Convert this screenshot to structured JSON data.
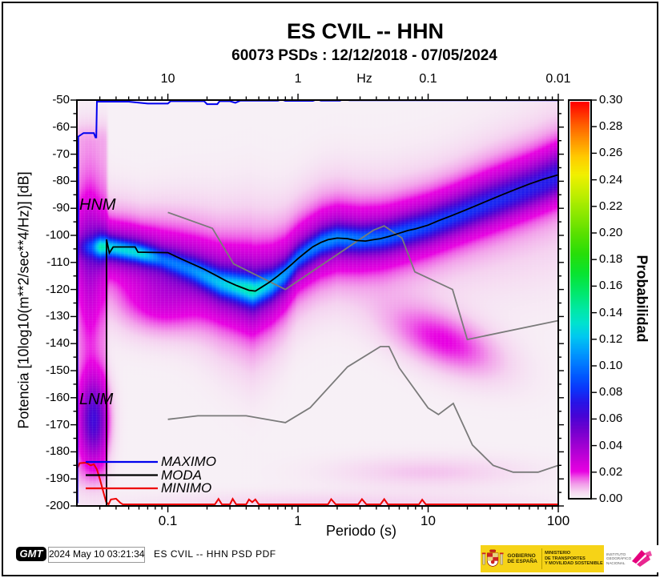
{
  "figure": {
    "title": "ES CVIL -- HHN",
    "subtitle": "60073 PSDs : 12/12/2018 - 07/05/2024"
  },
  "footer": {
    "gmt_logo": "GMT",
    "timestamp": "2024 May 10 03:21:34",
    "label": "ES CVIL -- HHN PSD PDF"
  },
  "logos": {
    "gobierno": [
      "GOBIERNO",
      "DE ESPAÑA"
    ],
    "ministerio": [
      "MINISTERIO",
      "DE TRANSPORTES",
      "Y MOVILIDAD SOSTENIBLE"
    ],
    "ign": [
      "INSTITUTO",
      "GEOGRÁFICO",
      "NACIONAL"
    ]
  },
  "chart_data": {
    "type": "heatmap",
    "title": "ES CVIL -- HHN",
    "subtitle": "60073 PSDs : 12/12/2018 - 07/05/2024",
    "xlabel": "Periodo (s)",
    "x_scale": "log",
    "xlim": [
      0.02,
      100
    ],
    "x_ticks": {
      "values": [
        0.1,
        1,
        10,
        100
      ],
      "labels": [
        "0.1",
        "1",
        "10",
        "100"
      ]
    },
    "top_axis": {
      "unit_label": "Hz",
      "ticks": [
        {
          "label": "10",
          "period": 0.1
        },
        {
          "label": "1",
          "period": 1
        },
        {
          "label": "0.1",
          "period": 10
        },
        {
          "label": "0.01",
          "period": 100
        }
      ]
    },
    "ylabel": "Potencia [10log10(m**2/sec**4/Hz)] [dB]",
    "ylim": [
      -200,
      -50
    ],
    "y_ticks": {
      "values": [
        -50,
        -60,
        -70,
        -80,
        -90,
        -100,
        -110,
        -120,
        -130,
        -140,
        -150,
        -160,
        -170,
        -180,
        -190,
        -200
      ],
      "labels": [
        "-50",
        "-60",
        "-70",
        "-80",
        "-90",
        "-100",
        "-110",
        "-120",
        "-130",
        "-140",
        "-150",
        "-160",
        "-170",
        "-180",
        "-190",
        "-200"
      ],
      "minor_step": 5
    },
    "colorbar": {
      "label": "Probabilidad",
      "min": 0.0,
      "max": 0.3,
      "tick_step": 0.02,
      "tick_labels": [
        "0.00",
        "0.02",
        "0.04",
        "0.06",
        "0.08",
        "0.10",
        "0.12",
        "0.14",
        "0.16",
        "0.18",
        "0.20",
        "0.22",
        "0.24",
        "0.26",
        "0.28",
        "0.30"
      ],
      "stops": [
        [
          0.0,
          247,
          240,
          246
        ],
        [
          0.005,
          245,
          210,
          240
        ],
        [
          0.01,
          242,
          160,
          234
        ],
        [
          0.015,
          238,
          90,
          230
        ],
        [
          0.02,
          232,
          0,
          226
        ],
        [
          0.03,
          196,
          0,
          216
        ],
        [
          0.04,
          158,
          0,
          210
        ],
        [
          0.052,
          110,
          0,
          206
        ],
        [
          0.062,
          70,
          4,
          214
        ],
        [
          0.072,
          40,
          20,
          230
        ],
        [
          0.082,
          12,
          52,
          250
        ],
        [
          0.092,
          0,
          88,
          255
        ],
        [
          0.102,
          0,
          124,
          255
        ],
        [
          0.112,
          0,
          162,
          252
        ],
        [
          0.122,
          0,
          200,
          240
        ],
        [
          0.132,
          0,
          226,
          208
        ],
        [
          0.142,
          0,
          232,
          168
        ],
        [
          0.155,
          0,
          232,
          110
        ],
        [
          0.17,
          8,
          228,
          48
        ],
        [
          0.185,
          40,
          222,
          8
        ],
        [
          0.2,
          90,
          224,
          0
        ],
        [
          0.215,
          140,
          232,
          0
        ],
        [
          0.23,
          192,
          238,
          0
        ],
        [
          0.245,
          242,
          240,
          0
        ],
        [
          0.258,
          255,
          204,
          0
        ],
        [
          0.27,
          255,
          152,
          0
        ],
        [
          0.283,
          255,
          92,
          0
        ],
        [
          0.3,
          255,
          0,
          0
        ]
      ]
    },
    "annotations": {
      "hnm": "HNM",
      "lnm": "LNM"
    },
    "legend": [
      {
        "label": "MAXIMO",
        "color": "#0000ee"
      },
      {
        "label": "MODA",
        "color": "#000000"
      },
      {
        "label": "MINIMO",
        "color": "#ee0000"
      }
    ],
    "series": {
      "maximo": [
        [
          0.0202,
          -199
        ],
        [
          0.0202,
          -130
        ],
        [
          0.0205,
          -90
        ],
        [
          0.0205,
          -63.5
        ],
        [
          0.0225,
          -62.2
        ],
        [
          0.027,
          -62.2
        ],
        [
          0.0278,
          -63.8
        ],
        [
          0.0282,
          -63.8
        ],
        [
          0.0285,
          -50.6
        ],
        [
          0.05,
          -50.6
        ],
        [
          0.07,
          -51.3
        ],
        [
          0.1,
          -51.3
        ],
        [
          0.105,
          -50.4
        ],
        [
          0.19,
          -50.4
        ],
        [
          0.2,
          -51.5
        ],
        [
          0.24,
          -51.5
        ],
        [
          0.25,
          -50.4
        ],
        [
          0.3,
          -50.4
        ],
        [
          0.33,
          -51.0
        ],
        [
          0.36,
          -50.2
        ],
        [
          0.7,
          -50.2
        ],
        [
          0.75,
          -49.8
        ],
        [
          0.8,
          -50.3
        ],
        [
          1.3,
          -50.3
        ],
        [
          1.4,
          -49.7
        ],
        [
          1.5,
          -50.2
        ],
        [
          2.1,
          -50.2
        ],
        [
          2.2,
          -49.8
        ],
        [
          2.5,
          -50.1
        ],
        [
          100,
          -50.1
        ]
      ],
      "moda": [
        [
          0.0338,
          -200
        ],
        [
          0.0338,
          -101.5
        ],
        [
          0.0355,
          -106.5
        ],
        [
          0.038,
          -104.3
        ],
        [
          0.056,
          -104.3
        ],
        [
          0.059,
          -106.2
        ],
        [
          0.1,
          -106.4
        ],
        [
          0.12,
          -108.2
        ],
        [
          0.15,
          -110.3
        ],
        [
          0.19,
          -112.5
        ],
        [
          0.23,
          -114.6
        ],
        [
          0.28,
          -116.8
        ],
        [
          0.34,
          -118.6
        ],
        [
          0.42,
          -120.3
        ],
        [
          0.47,
          -120.6
        ],
        [
          0.52,
          -119.3
        ],
        [
          0.6,
          -117.4
        ],
        [
          0.7,
          -115.0
        ],
        [
          0.8,
          -112.7
        ],
        [
          0.9,
          -110.6
        ],
        [
          1.0,
          -108.6
        ],
        [
          1.15,
          -106.2
        ],
        [
          1.3,
          -104.2
        ],
        [
          1.5,
          -102.6
        ],
        [
          1.7,
          -101.6
        ],
        [
          2.0,
          -101.0
        ],
        [
          2.4,
          -101.2
        ],
        [
          2.8,
          -101.9
        ],
        [
          3.3,
          -102.1
        ],
        [
          3.8,
          -101.6
        ],
        [
          4.3,
          -101.2
        ],
        [
          5.0,
          -100.4
        ],
        [
          6.0,
          -99.2
        ],
        [
          7.0,
          -98.2
        ],
        [
          8.0,
          -97.6
        ],
        [
          10.0,
          -96.2
        ],
        [
          12.0,
          -94.6
        ],
        [
          15.0,
          -92.8
        ],
        [
          19.0,
          -90.8
        ],
        [
          24.0,
          -88.8
        ],
        [
          30.0,
          -86.8
        ],
        [
          38.0,
          -84.8
        ],
        [
          48.0,
          -82.8
        ],
        [
          60.0,
          -81.0
        ],
        [
          75.0,
          -79.4
        ],
        [
          100.0,
          -77.6
        ]
      ],
      "minimo": [
        [
          0.0202,
          -186
        ],
        [
          0.021,
          -184.2
        ],
        [
          0.0235,
          -184.0
        ],
        [
          0.0255,
          -185.0
        ],
        [
          0.027,
          -184.6
        ],
        [
          0.0285,
          -186.5
        ],
        [
          0.03,
          -190
        ],
        [
          0.032,
          -195
        ],
        [
          0.0335,
          -198.5
        ],
        [
          0.035,
          -199.4
        ],
        [
          0.0365,
          -197.6
        ],
        [
          0.04,
          -197.3
        ],
        [
          0.043,
          -198.8
        ],
        [
          0.045,
          -199.4
        ],
        [
          0.23,
          -199.4
        ],
        [
          0.245,
          -197.4
        ],
        [
          0.26,
          -199.4
        ],
        [
          0.3,
          -199.4
        ],
        [
          0.315,
          -197.4
        ],
        [
          0.335,
          -199.4
        ],
        [
          0.4,
          -199.4
        ],
        [
          0.42,
          -197.6
        ],
        [
          0.445,
          -198.6
        ],
        [
          0.47,
          -197.6
        ],
        [
          0.5,
          -199.4
        ],
        [
          1.7,
          -199.4
        ],
        [
          1.8,
          -197.5
        ],
        [
          1.95,
          -199.4
        ],
        [
          2.9,
          -199.4
        ],
        [
          3.1,
          -197.5
        ],
        [
          3.35,
          -199.4
        ],
        [
          4.3,
          -199.4
        ],
        [
          4.6,
          -197.5
        ],
        [
          4.9,
          -199.4
        ],
        [
          8.5,
          -199.4
        ],
        [
          9.0,
          -197.7
        ],
        [
          9.6,
          -199.4
        ],
        [
          100,
          -199.4
        ]
      ],
      "hnm": [
        [
          0.1,
          -91.5
        ],
        [
          0.22,
          -97.4
        ],
        [
          0.32,
          -110.5
        ],
        [
          0.8,
          -120.0
        ],
        [
          3.8,
          -98.1
        ],
        [
          4.6,
          -96.5
        ],
        [
          6.3,
          -101.0
        ],
        [
          7.9,
          -113.5
        ],
        [
          15.4,
          -120.0
        ],
        [
          20.0,
          -138.5
        ],
        [
          100.0,
          -131.5
        ]
      ],
      "lnm": [
        [
          0.1,
          -168.0
        ],
        [
          0.17,
          -166.7
        ],
        [
          0.4,
          -166.7
        ],
        [
          0.8,
          -169.2
        ],
        [
          1.24,
          -163.7
        ],
        [
          2.4,
          -148.6
        ],
        [
          4.3,
          -141.1
        ],
        [
          5.0,
          -141.1
        ],
        [
          6.0,
          -149.0
        ],
        [
          10.0,
          -163.8
        ],
        [
          12.0,
          -166.2
        ],
        [
          15.6,
          -162.1
        ],
        [
          21.9,
          -177.5
        ],
        [
          31.6,
          -185.0
        ],
        [
          45.0,
          -187.5
        ],
        [
          70.0,
          -187.5
        ],
        [
          100.0,
          -185.0
        ]
      ]
    },
    "pdf_field": {
      "ridge_center": [
        [
          -1.699,
          -104.5
        ],
        [
          -1.47,
          -104.3
        ],
        [
          -1.24,
          -106.3
        ],
        [
          -1.1,
          -108.0
        ],
        [
          -0.94,
          -110.5
        ],
        [
          -0.8,
          -113.0
        ],
        [
          -0.6,
          -117.5
        ],
        [
          -0.34,
          -120.5
        ],
        [
          -0.2,
          -118.0
        ],
        [
          -0.1,
          -114.5
        ],
        [
          0.0,
          -108.5
        ],
        [
          0.08,
          -105.8
        ],
        [
          0.18,
          -102.8
        ],
        [
          0.3,
          -101.0
        ],
        [
          0.48,
          -101.5
        ],
        [
          0.63,
          -101.0
        ],
        [
          0.7,
          -100.4
        ],
        [
          0.85,
          -98.5
        ],
        [
          1.0,
          -96.5
        ],
        [
          1.18,
          -93.5
        ],
        [
          1.4,
          -89.5
        ],
        [
          1.6,
          -86.0
        ],
        [
          1.8,
          -82.5
        ],
        [
          2.0,
          -78.5
        ]
      ],
      "ridge_amp": [
        [
          -1.699,
          0.02
        ],
        [
          -1.58,
          0.06
        ],
        [
          -1.52,
          0.125
        ],
        [
          -1.2,
          0.125
        ],
        [
          -1.05,
          0.085
        ],
        [
          -0.85,
          0.09
        ],
        [
          -0.6,
          0.115
        ],
        [
          -0.36,
          0.14
        ],
        [
          -0.18,
          0.11
        ],
        [
          0.0,
          0.09
        ],
        [
          0.25,
          0.1
        ],
        [
          0.5,
          0.095
        ],
        [
          0.75,
          0.09
        ],
        [
          1.0,
          0.085
        ],
        [
          1.4,
          0.08
        ],
        [
          1.8,
          0.075
        ],
        [
          2.0,
          0.075
        ]
      ],
      "sigma_core": [
        [
          -1.699,
          2.6
        ],
        [
          -1.2,
          2.2
        ],
        [
          -0.8,
          3.0
        ],
        [
          -0.36,
          3.5
        ],
        [
          0.0,
          3.0
        ],
        [
          0.5,
          3.2
        ],
        [
          1.0,
          3.8
        ],
        [
          1.5,
          4.2
        ],
        [
          2.0,
          4.5
        ]
      ],
      "sigma_mid": [
        [
          -1.699,
          5.5
        ],
        [
          -1.2,
          5.0
        ],
        [
          -0.8,
          6.5
        ],
        [
          -0.36,
          8.0
        ],
        [
          0.0,
          6.5
        ],
        [
          0.5,
          7.0
        ],
        [
          1.0,
          7.5
        ],
        [
          1.5,
          8.0
        ],
        [
          2.0,
          8.0
        ]
      ],
      "sigma_halo": [
        [
          -1.699,
          12
        ],
        [
          -1.2,
          11
        ],
        [
          -0.6,
          16
        ],
        [
          -0.36,
          18
        ],
        [
          0.0,
          14
        ],
        [
          0.5,
          14
        ],
        [
          1.0,
          13
        ],
        [
          1.5,
          13
        ],
        [
          2.0,
          13
        ]
      ],
      "halo_amp": [
        [
          -1.699,
          0.016
        ],
        [
          -1.3,
          0.022
        ],
        [
          -0.36,
          0.023
        ],
        [
          0.2,
          0.021
        ],
        [
          0.7,
          0.016
        ],
        [
          1.2,
          0.012
        ],
        [
          2.0,
          0.01
        ]
      ],
      "blobs": [
        {
          "lp": -1.57,
          "sx": 0.075,
          "a": 0.055,
          "d": -168,
          "sy": 10.5,
          "tilt": 0
        },
        {
          "lp": -1.6,
          "sx": 0.06,
          "a": 0.016,
          "d": -112,
          "sy": 22,
          "tilt": 0
        },
        {
          "lp": -1.08,
          "sx": 0.22,
          "a": 0.02,
          "d": -124,
          "sy": 8.5,
          "tilt": 0
        },
        {
          "lp": 1.12,
          "sx": 0.3,
          "a": 0.02,
          "d": -139,
          "sy": 7.5,
          "tilt": -16
        },
        {
          "lp": 1.0,
          "sx": 0.5,
          "a": 0.0065,
          "d": -187.5,
          "sy": 4,
          "tilt": 0
        },
        {
          "lp": 0.3,
          "sx": 1.0,
          "a": 0.005,
          "d": -199,
          "sy": 2.8,
          "tilt": 0
        }
      ],
      "left_column": {
        "lp_max": -1.45,
        "amp": 0.009,
        "d_top": -66,
        "d_bot": -186
      }
    }
  }
}
